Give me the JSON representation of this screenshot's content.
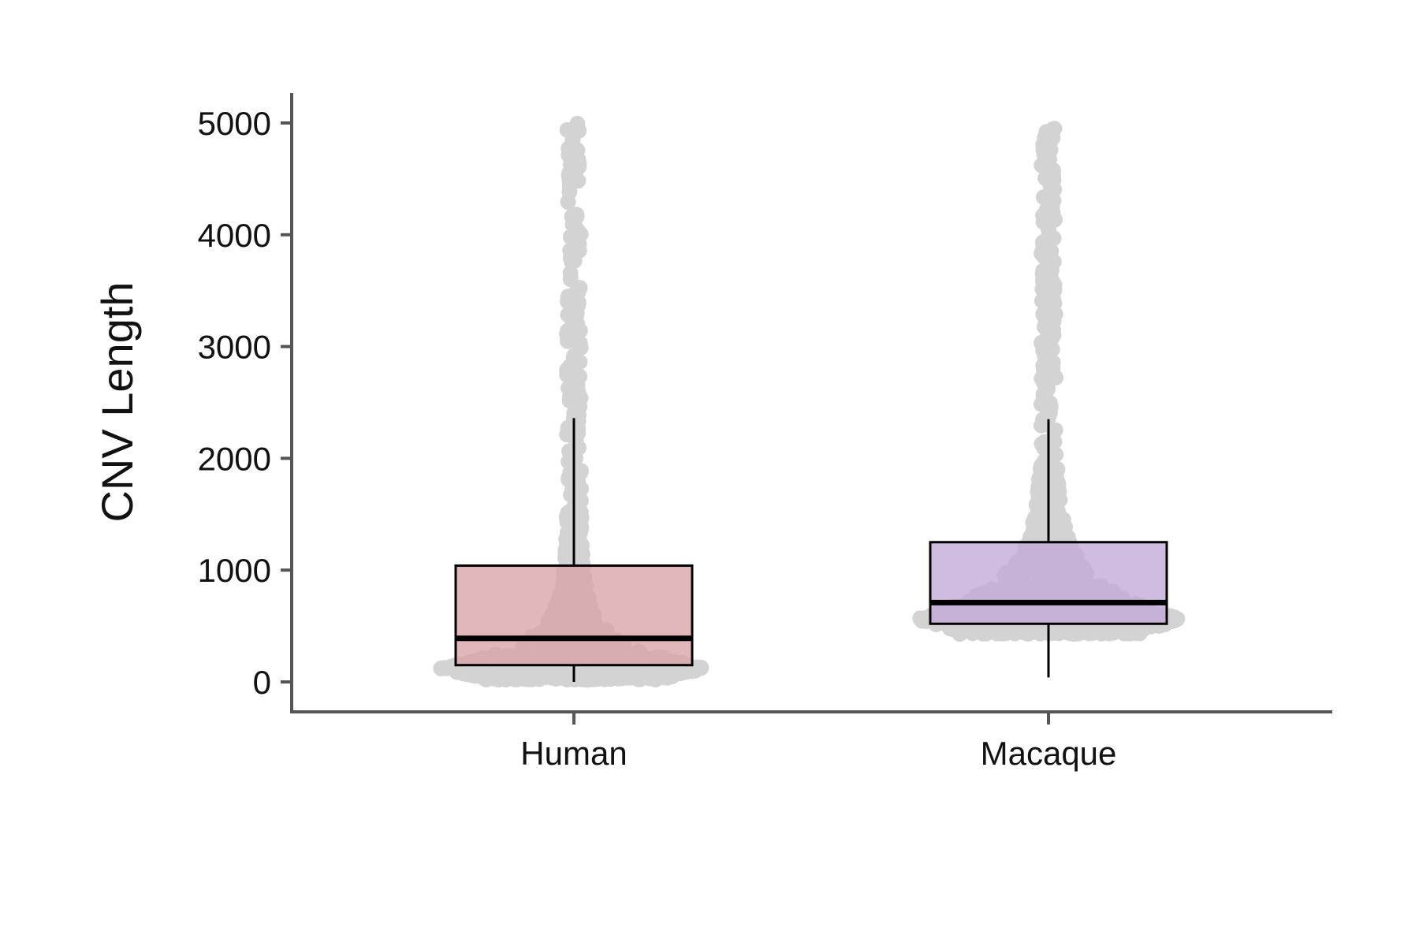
{
  "chart_data": {
    "type": "box",
    "title": "",
    "xlabel": "",
    "ylabel": "CNV Length",
    "ylim": [
      -250,
      5250
    ],
    "yticks": [
      0,
      1000,
      2000,
      3000,
      4000,
      5000
    ],
    "grid": false,
    "legend": "none",
    "categories": [
      "Human",
      "Macaque"
    ],
    "series": [
      {
        "name": "Human",
        "color": "#d9a3a6",
        "whisker_low": 0,
        "q1": 150,
        "median": 390,
        "q3": 1040,
        "whisker_high": 2360,
        "max": 5000
      },
      {
        "name": "Macaque",
        "color": "#c3a8d8",
        "whisker_low": 40,
        "q1": 520,
        "median": 710,
        "q3": 1250,
        "whisker_high": 2350,
        "max": 4950
      }
    ],
    "point_color": "#d3d3d3"
  }
}
